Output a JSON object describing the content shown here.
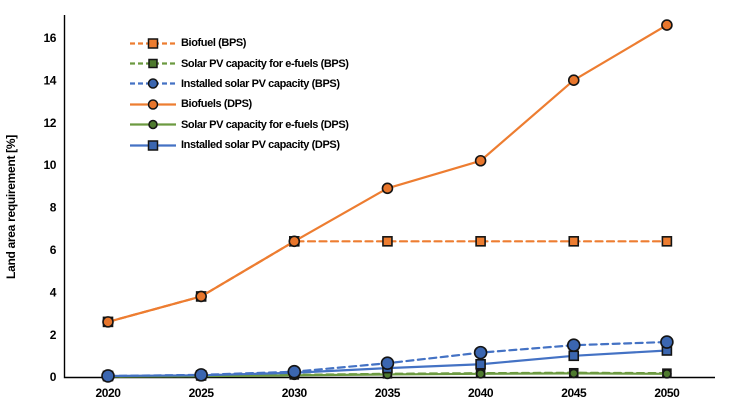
{
  "chart_data": {
    "type": "line",
    "title": "",
    "xlabel": "",
    "ylabel": "Land area requirement [%]",
    "x": [
      2020,
      2025,
      2030,
      2035,
      2040,
      2045,
      2050
    ],
    "x_tick_labels": [
      "2020",
      "2025",
      "2030",
      "2035",
      "2040",
      "2045",
      "2050"
    ],
    "y_ticks": [
      0,
      2,
      4,
      6,
      8,
      10,
      12,
      14,
      16
    ],
    "ylim": [
      0,
      16
    ],
    "grid": false,
    "legend_position": "upper-left-inside",
    "background_color": "#FFFFFF",
    "axis_color": "#000000",
    "series": [
      {
        "name": "biofuel-bps",
        "label": "Biofuel (BPS)",
        "line_style": "dashed",
        "marker": "square",
        "marker_size": 9,
        "line_color": "#ED7D31",
        "marker_fill": "#ED7D31",
        "marker_stroke": "#141414",
        "values": [
          2.6,
          3.8,
          6.4,
          6.4,
          6.4,
          6.4,
          6.4
        ]
      },
      {
        "name": "solar-pv-efuels-bps",
        "label": "Solar PV capacity for e-fuels (BPS)",
        "line_style": "dashed",
        "marker": "square",
        "marker_size": 8,
        "line_color": "#6C9A41",
        "marker_fill": "#4E7A2E",
        "marker_stroke": "#141414",
        "values": [
          0.02,
          0.05,
          0.1,
          0.15,
          0.18,
          0.2,
          0.18
        ]
      },
      {
        "name": "installed-solar-pv-bps",
        "label": "Installed solar PV capacity (BPS)",
        "line_style": "dashed",
        "marker": "circle",
        "marker_size": 12,
        "line_color": "#4472C4",
        "marker_fill": "#3B66B0",
        "marker_stroke": "#141414",
        "values": [
          0.05,
          0.1,
          0.25,
          0.65,
          1.15,
          1.5,
          1.65
        ]
      },
      {
        "name": "biofuels-dps",
        "label": "Biofuels (DPS)",
        "line_style": "solid",
        "marker": "circle",
        "marker_size": 10,
        "line_color": "#ED7D31",
        "marker_fill": "#E8762C",
        "marker_stroke": "#141414",
        "values": [
          2.6,
          3.8,
          6.4,
          8.9,
          10.2,
          14.0,
          16.6
        ]
      },
      {
        "name": "solar-pv-efuels-dps",
        "label": "Solar PV capacity for e-fuels (DPS)",
        "line_style": "solid",
        "marker": "circle",
        "marker_size": 8,
        "line_color": "#6C9A41",
        "marker_fill": "#4E7A2E",
        "marker_stroke": "#141414",
        "values": [
          0.02,
          0.04,
          0.08,
          0.12,
          0.15,
          0.17,
          0.15
        ]
      },
      {
        "name": "installed-solar-pv-dps",
        "label": "Installed solar PV capacity (DPS)",
        "line_style": "solid",
        "marker": "square",
        "marker_size": 9,
        "line_color": "#4472C4",
        "marker_fill": "#3B66B0",
        "marker_stroke": "#141414",
        "values": [
          0.05,
          0.08,
          0.2,
          0.42,
          0.6,
          1.0,
          1.25
        ]
      }
    ],
    "draw_order": [
      1,
      4,
      0,
      5,
      2,
      3
    ]
  }
}
